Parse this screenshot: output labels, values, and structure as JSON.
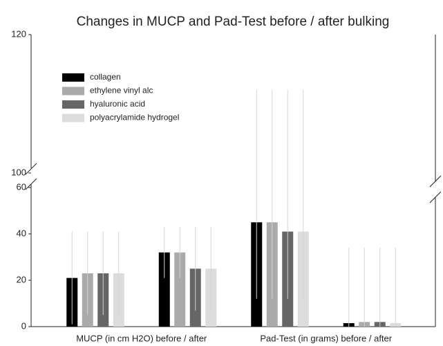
{
  "chart_data": {
    "type": "bar",
    "title": "Changes in MUCP and Pad-Test before / after bulking",
    "categories": [
      "MUCP (in cm H2O) before / after",
      null,
      "Pad-Test (in grams) before / after",
      null
    ],
    "ylim": [
      0,
      60
    ],
    "yticks": [
      0,
      20,
      40,
      60
    ],
    "ylim_upper": [
      100,
      120
    ],
    "yticks_upper": [
      100,
      120
    ],
    "axis_break": true,
    "error_color": "#d4d4d4",
    "series": [
      {
        "name": "collagen",
        "color": "#000000",
        "values": [
          21,
          32,
          45,
          1.5
        ],
        "error_low": [
          1,
          21,
          12,
          0
        ],
        "error_high": [
          41,
          43,
          112,
          34
        ]
      },
      {
        "name": "ethylene vinyl alc",
        "color": "#aaaaaa",
        "values": [
          23,
          32,
          45,
          2
        ],
        "error_low": [
          5,
          21,
          12,
          0
        ],
        "error_high": [
          41,
          43,
          112,
          34
        ]
      },
      {
        "name": "hyaluronic acid",
        "color": "#666666",
        "values": [
          23,
          25,
          41,
          2
        ],
        "error_low": [
          5,
          7,
          12,
          0
        ],
        "error_high": [
          41,
          43,
          112,
          34
        ]
      },
      {
        "name": "polyacrylamide hydrogel",
        "color": "#dcdcdc",
        "values": [
          23,
          25,
          41,
          1.5
        ],
        "error_low": [
          5,
          7,
          12,
          0
        ],
        "error_high": [
          41,
          43,
          112,
          34
        ]
      }
    ]
  }
}
